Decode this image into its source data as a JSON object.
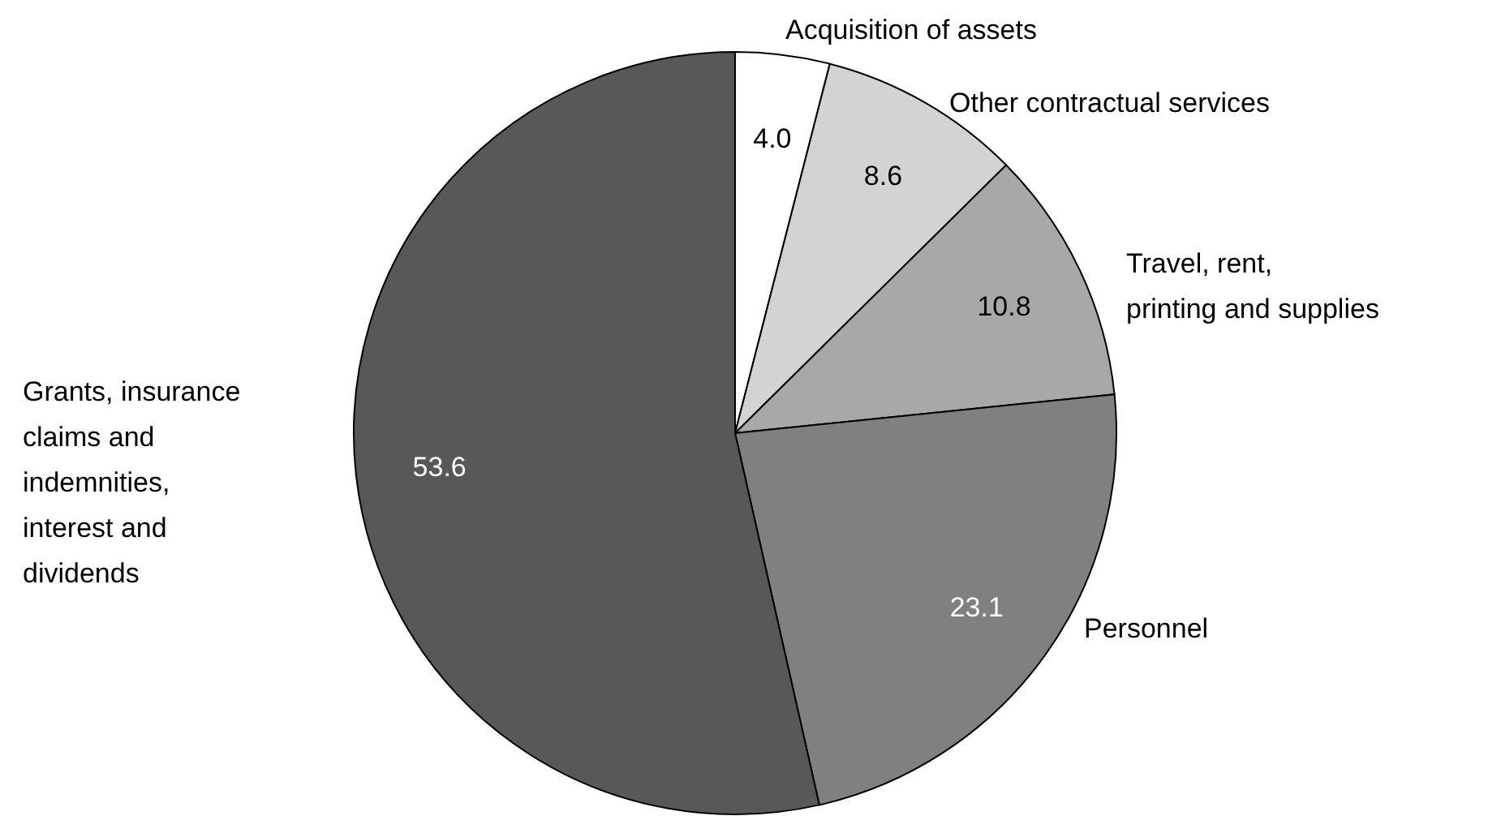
{
  "chart_data": {
    "type": "pie",
    "categories": [
      "Acquisition of assets",
      "Other contractual services",
      "Travel, rent, printing and supplies",
      "Personnel",
      "Grants, insurance claims and indemnities, interest and dividends"
    ],
    "values": [
      4.0,
      8.6,
      10.8,
      23.1,
      53.6
    ],
    "colors": [
      "#ffffff",
      "#d3d3d4",
      "#a8a8aa",
      "#808082",
      "#58585a"
    ],
    "value_labels": [
      "4.0",
      "8.6",
      "10.8",
      "23.1",
      "53.6"
    ]
  }
}
